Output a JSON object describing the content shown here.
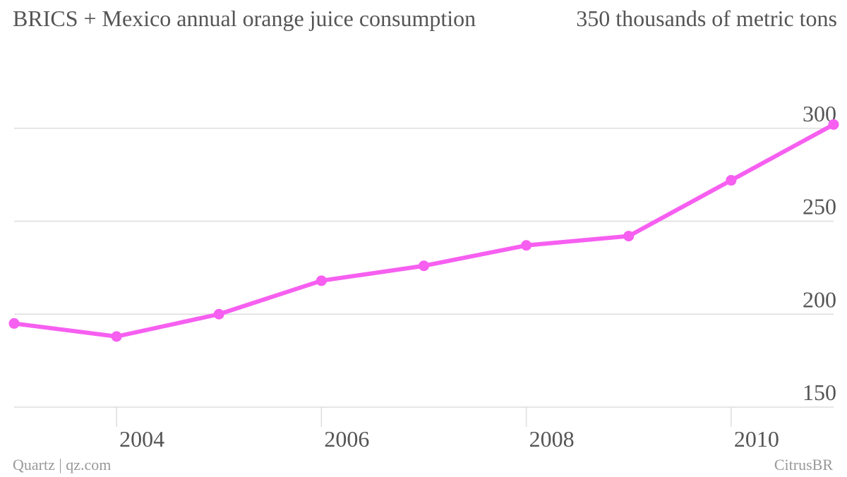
{
  "header": {
    "title": "BRICS + Mexico annual orange juice consumption",
    "unit_label": "350 thousands of metric tons"
  },
  "footer": {
    "credit": "Quartz | qz.com",
    "source": "CitrusBR"
  },
  "colors": {
    "series": "#f65ff0",
    "grid": "#dddddd",
    "text": "#555555",
    "footer_text": "#999999"
  },
  "chart_data": {
    "type": "line",
    "title": "BRICS + Mexico annual orange juice consumption",
    "ylabel": "thousands of metric tons",
    "xlabel": "",
    "x": [
      2003,
      2004,
      2005,
      2006,
      2007,
      2008,
      2009,
      2010,
      2011
    ],
    "series": [
      {
        "values": [
          195,
          188,
          200,
          218,
          226,
          237,
          242,
          272,
          302
        ]
      }
    ],
    "ylim": [
      150,
      350
    ],
    "yticks": [
      150,
      200,
      250,
      300
    ],
    "ytick_labels": [
      "150",
      "200",
      "250",
      "300"
    ],
    "xlim": [
      2003,
      2011
    ],
    "xticks": [
      2004,
      2006,
      2008,
      2010
    ],
    "xtick_labels": [
      "2004",
      "2006",
      "2008",
      "2010"
    ],
    "grid": true,
    "legend": "none",
    "markers": true
  }
}
